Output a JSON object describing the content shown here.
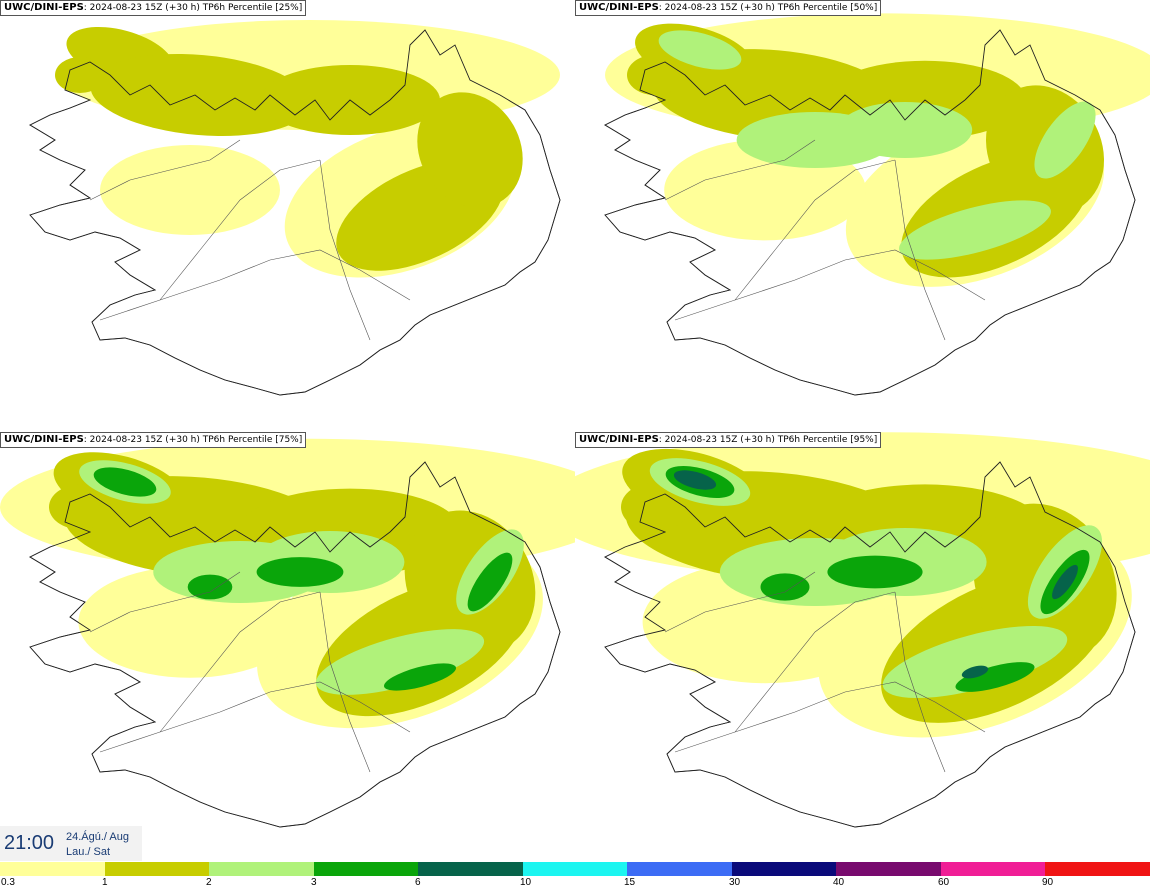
{
  "panels": [
    {
      "model": "UWC/DINI-EPS",
      "info": ": 2024-08-23 15Z (+30 h) TP6h Percentile [25%]",
      "intensity": 1
    },
    {
      "model": "UWC/DINI-EPS",
      "info": ": 2024-08-23 15Z (+30 h) TP6h Percentile [50%]",
      "intensity": 2
    },
    {
      "model": "UWC/DINI-EPS",
      "info": ": 2024-08-23 15Z (+30 h) TP6h Percentile [75%]",
      "intensity": 3
    },
    {
      "model": "UWC/DINI-EPS",
      "info": ": 2024-08-23 15Z (+30 h) TP6h Percentile [95%]",
      "intensity": 4
    }
  ],
  "valid_time": {
    "time": "21:00",
    "date_line1": "24.Ágú./ Aug",
    "date_line2": "Lau./ Sat"
  },
  "legend": {
    "labels": [
      "0.3",
      "1",
      "2",
      "3",
      "6",
      "10",
      "15",
      "30",
      "40",
      "60",
      "90"
    ],
    "colors": [
      "#ffff99",
      "#c7cd00",
      "#b0f27a",
      "#0aa50a",
      "#06634a",
      "#1cf5f0",
      "#3c6cf5",
      "#0a0a7a",
      "#780a6e",
      "#f01e96",
      "#f01414"
    ]
  }
}
